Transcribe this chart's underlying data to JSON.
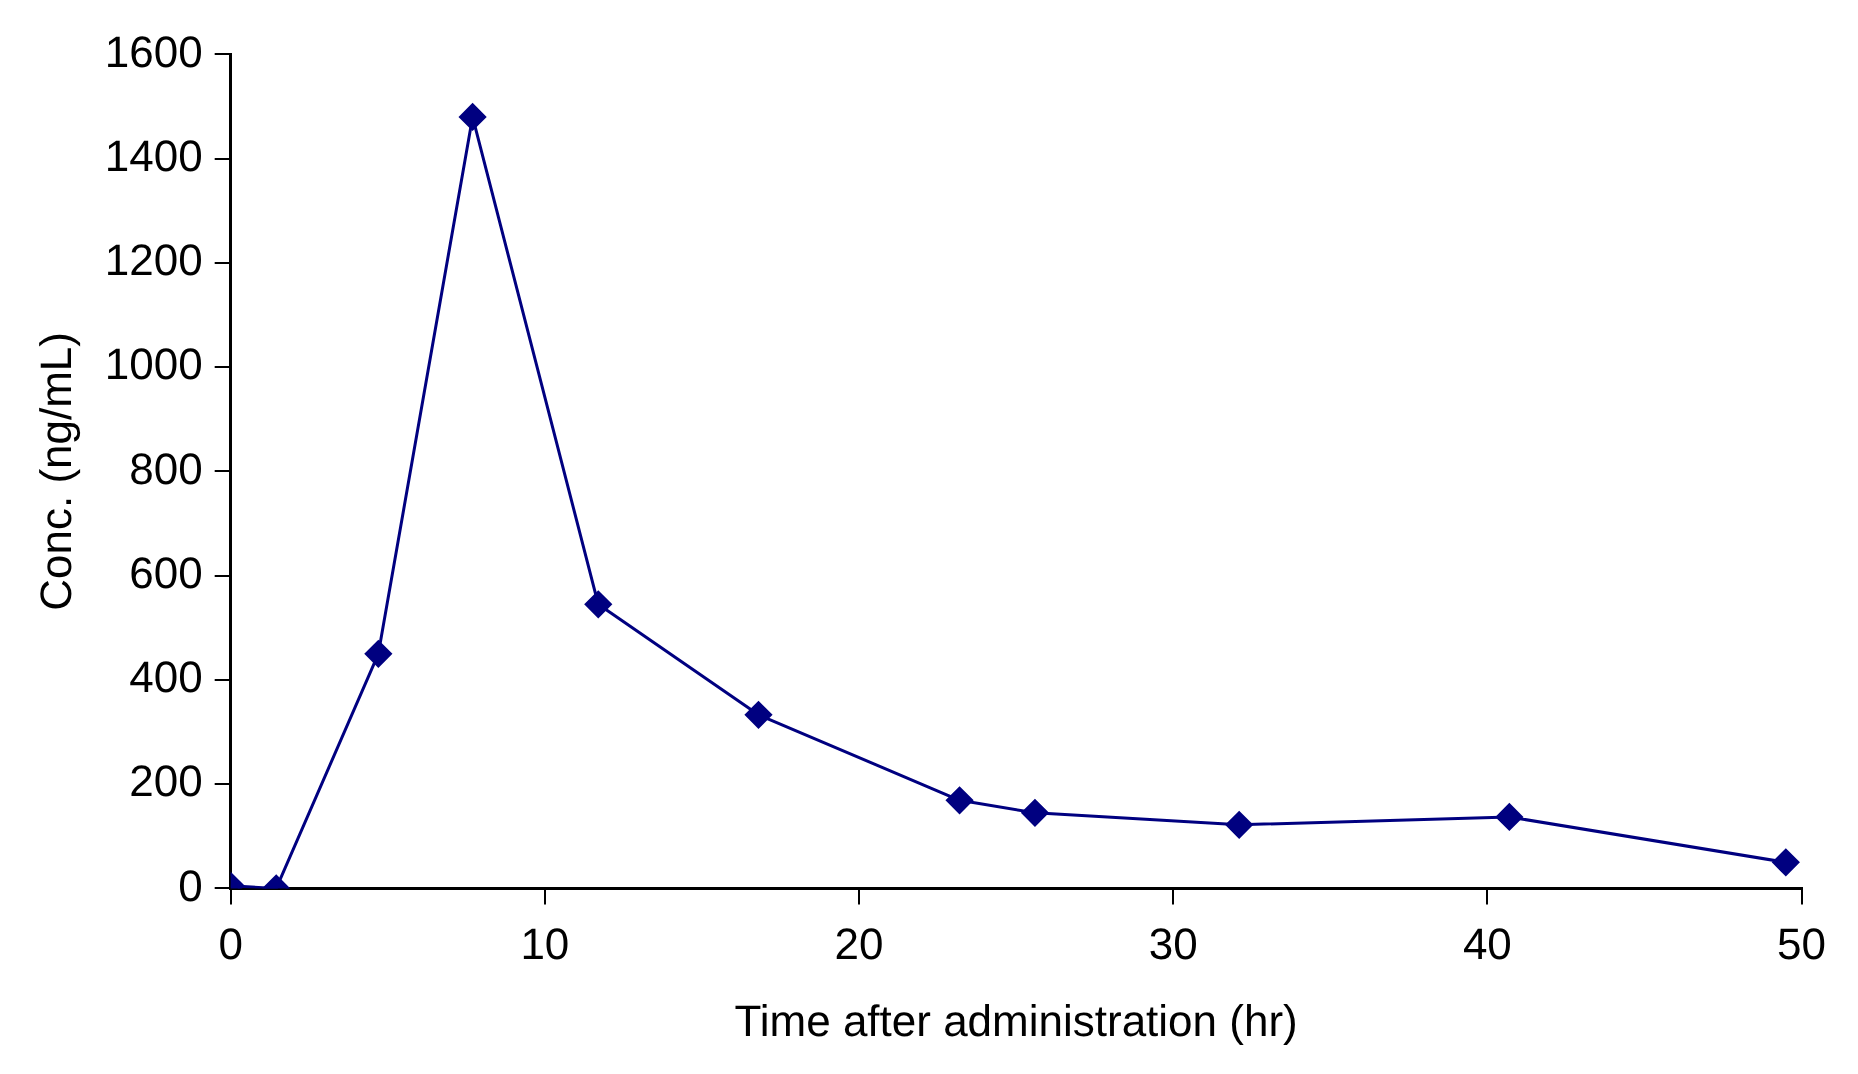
{
  "chart_data": {
    "type": "line",
    "xlabel": "Time after administration (hr)",
    "ylabel": "Conc. (ng/mL)",
    "x": [
      0,
      1.45,
      4.7,
      7.7,
      11.7,
      16.8,
      23.2,
      25.6,
      32.1,
      40.7,
      49.5
    ],
    "series": [
      {
        "color": "#000080",
        "values": [
          5,
          0,
          450,
          1480,
          545,
          333,
          169,
          145,
          122,
          137,
          50
        ]
      }
    ],
    "xlim": [
      0,
      50
    ],
    "xticks": [
      0,
      10,
      20,
      30,
      40,
      50
    ],
    "ylim": [
      0,
      1600
    ],
    "yticks": [
      0,
      200,
      400,
      600,
      800,
      1000,
      1200,
      1400,
      1600
    ],
    "grid": false,
    "legend": false,
    "marker": "diamond",
    "line_style": "solid"
  }
}
